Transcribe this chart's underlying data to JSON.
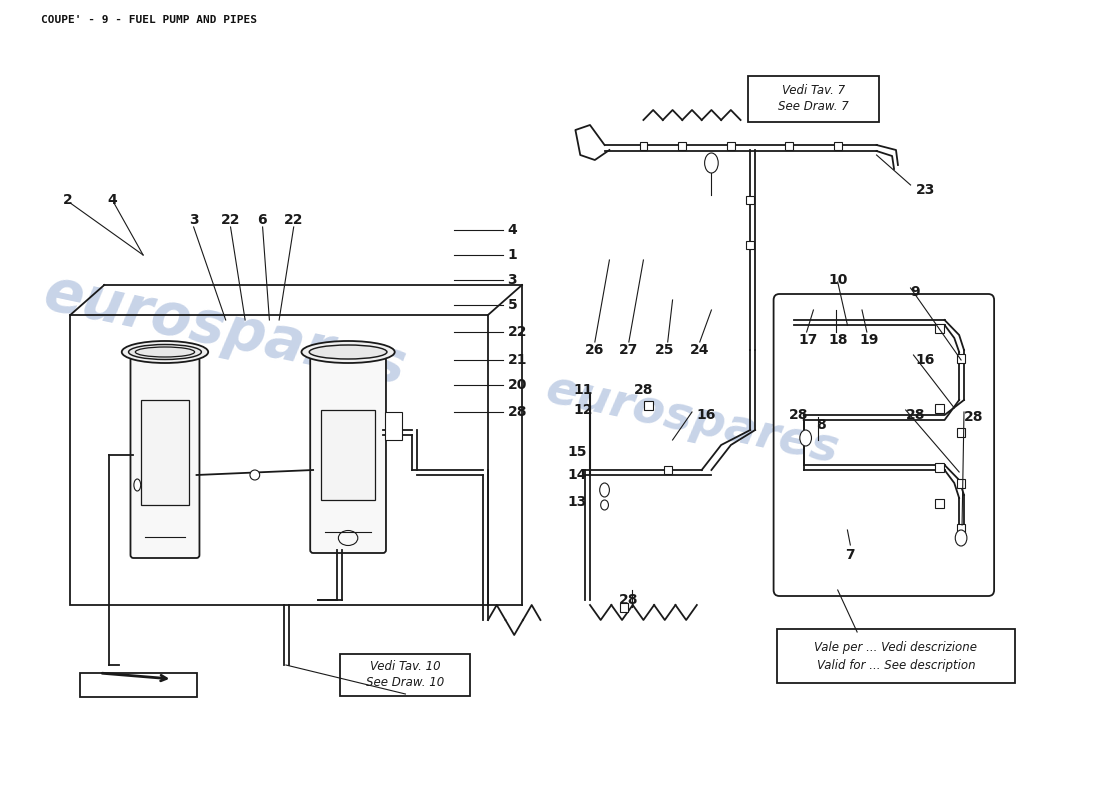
{
  "title": "COUPE' - 9 - FUEL PUMP AND PIPES",
  "background_color": "#ffffff",
  "watermark_text": "eurospares",
  "watermark_color": "#c8d4e8",
  "title_fontsize": 8,
  "title_color": "#111111",
  "diagram_color": "#1a1a1a",
  "vedi_tav10_text1": "Vedi Tav. 10",
  "vedi_tav10_text2": "See Draw. 10",
  "vedi_tav7_text1": "Vedi Tav. 7",
  "vedi_tav7_text2": "See Draw. 7",
  "vale_per_text1": "Vale per ... Vedi descrizione",
  "vale_per_text2": "Valid for ... See description"
}
